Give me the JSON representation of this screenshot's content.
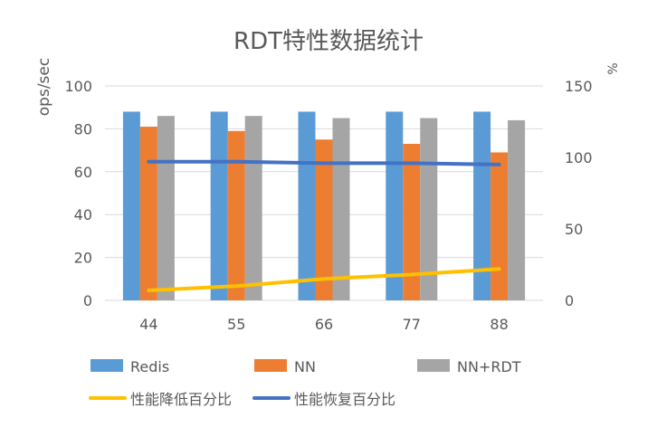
{
  "chart_data": {
    "type": "bar",
    "title": "RDT特性数据统计",
    "ylabel": "ops/sec",
    "y2label": "%",
    "categories": [
      "44",
      "55",
      "66",
      "77",
      "88"
    ],
    "ylim": [
      0,
      100
    ],
    "yticks": [
      0,
      20,
      40,
      60,
      80,
      100
    ],
    "y2lim": [
      0,
      150
    ],
    "y2ticks": [
      0,
      50,
      100,
      150
    ],
    "grid": true,
    "legend_position": "bottom",
    "series": [
      {
        "name": "Redis",
        "kind": "bar",
        "axis": "left",
        "color": "#5B9BD5",
        "values": [
          88,
          88,
          88,
          88,
          88
        ]
      },
      {
        "name": "NN",
        "kind": "bar",
        "axis": "left",
        "color": "#ED7D31",
        "values": [
          81,
          79,
          75,
          73,
          69
        ]
      },
      {
        "name": "NN+RDT",
        "kind": "bar",
        "axis": "left",
        "color": "#A5A5A5",
        "values": [
          86,
          86,
          85,
          85,
          84
        ]
      },
      {
        "name": "性能降低百分比",
        "kind": "line",
        "axis": "right",
        "color": "#FFC000",
        "values": [
          7,
          10,
          15,
          18,
          22
        ]
      },
      {
        "name": "性能恢复百分比",
        "kind": "line",
        "axis": "right",
        "color": "#4472C4",
        "values": [
          97,
          97,
          96,
          96,
          95
        ]
      }
    ]
  }
}
